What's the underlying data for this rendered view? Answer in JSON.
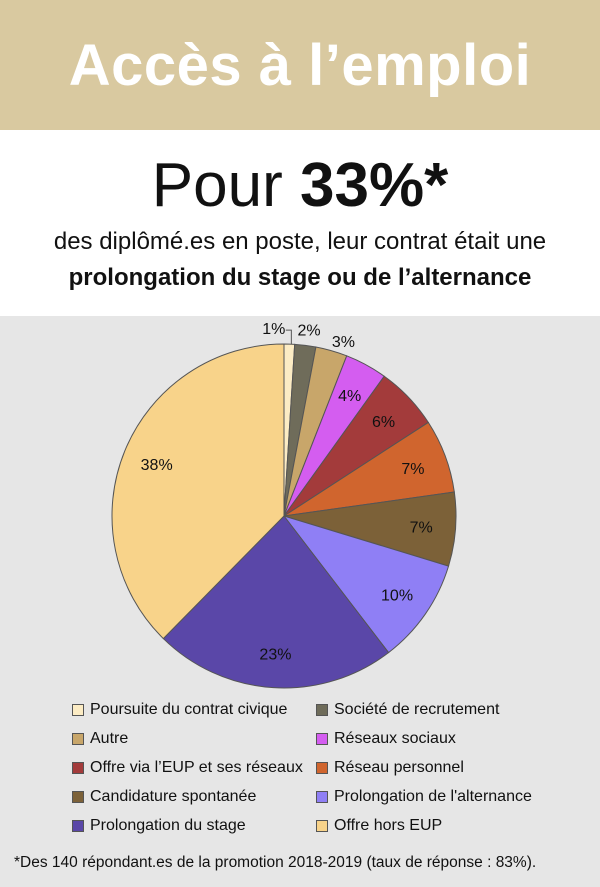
{
  "banner": {
    "title": "Accès à l’emploi"
  },
  "headline": {
    "prefix": "Pour ",
    "value": "33%*"
  },
  "subline": {
    "line1": "des diplômé.es en poste, leur contrat était une",
    "line2": "prolongation du stage ou de l’alternance"
  },
  "chart_data": {
    "type": "pie",
    "title": "",
    "slices": [
      {
        "name": "Poursuite du contrat civique",
        "value": 1,
        "label": "1%",
        "color": "#fcecc4"
      },
      {
        "name": "Société de recrutement",
        "value": 2,
        "label": "2%",
        "color": "#6f6c5a"
      },
      {
        "name": "Autre",
        "value": 3,
        "label": "3%",
        "color": "#c8a66a"
      },
      {
        "name": "Réseaux sociaux",
        "value": 4,
        "label": "4%",
        "color": "#d45df0"
      },
      {
        "name": "Offre via l’EUP et ses réseaux",
        "value": 6,
        "label": "6%",
        "color": "#a33b3b"
      },
      {
        "name": "Réseau personnel",
        "value": 7,
        "label": "7%",
        "color": "#d0652e"
      },
      {
        "name": "Candidature spontanée",
        "value": 7,
        "label": "7%",
        "color": "#7c6138"
      },
      {
        "name": "Prolongation de l'alternance",
        "value": 10,
        "label": "10%",
        "color": "#8f7ff5"
      },
      {
        "name": "Prolongation du stage",
        "value": 23,
        "label": "23%",
        "color": "#5a47a8"
      },
      {
        "name": "Offre hors EUP",
        "value": 38,
        "label": "38%",
        "color": "#f8d38a"
      }
    ],
    "legend_placement": "bottom",
    "legend_order": [
      "Poursuite du contrat civique",
      "Société de recrutement",
      "Autre",
      "Réseaux sociaux",
      "Offre via l’EUP et ses réseaux",
      "Réseau personnel",
      "Candidature spontanée",
      "Prolongation de l'alternance",
      "Prolongation du stage",
      "Offre hors EUP"
    ]
  },
  "footnote": "*Des 140 répondant.es de la promotion 2018-2019 (taux de réponse : 83%)."
}
